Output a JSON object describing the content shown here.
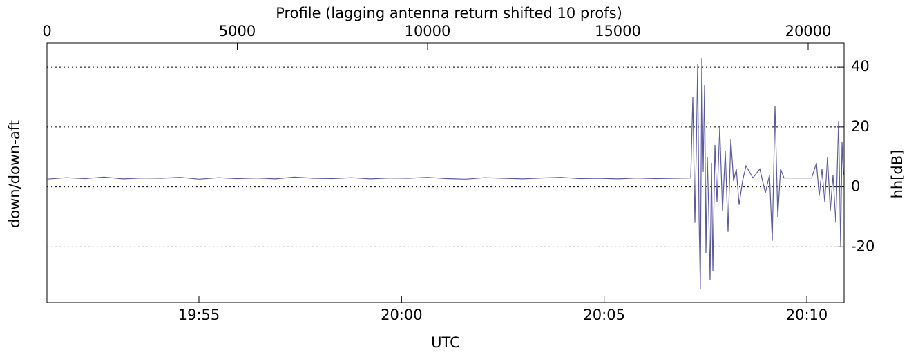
{
  "chart_data": {
    "type": "line",
    "title": "Profile (lagging antenna return shifted 10 profs)",
    "xlabel": "UTC",
    "ylabel": "down/down-aft",
    "y2label": "hh[dB]",
    "xlim": [
      0,
      20944
    ],
    "xticks": [
      0,
      5000,
      10000,
      15000,
      20000
    ],
    "x2lim": [
      51.25,
      70.92
    ],
    "x2ticks": [
      {
        "value": 55,
        "label": "19:55"
      },
      {
        "value": 60,
        "label": "20:00"
      },
      {
        "value": 65,
        "label": "20:05"
      },
      {
        "value": 70,
        "label": "20:10"
      }
    ],
    "ylim": [
      -38.6,
      48.1
    ],
    "yticks": [
      -20,
      0,
      20,
      40
    ],
    "grid": true,
    "x": [
      0,
      500,
      1000,
      1500,
      2000,
      2500,
      3000,
      3500,
      4000,
      4500,
      5000,
      5500,
      6000,
      6500,
      7000,
      7500,
      8000,
      8500,
      9000,
      9500,
      10000,
      10500,
      11000,
      11500,
      12000,
      12500,
      13000,
      13500,
      14000,
      14500,
      15000,
      15500,
      16000,
      16500,
      16915,
      16969,
      17024,
      17060,
      17096,
      17132,
      17168,
      17205,
      17241,
      17277,
      17314,
      17350,
      17387,
      17423,
      17459,
      17495,
      17550,
      17604,
      17677,
      17750,
      17822,
      17895,
      17967,
      18040,
      18113,
      18185,
      18276,
      18367,
      18548,
      18730,
      18875,
      18984,
      19056,
      19129,
      19201,
      19274,
      19365,
      19546,
      19819,
      20091,
      20218,
      20290,
      20363,
      20436,
      20508,
      20581,
      20653,
      20726,
      20799,
      20853,
      20889,
      20926
    ],
    "series": [
      {
        "name": "hh",
        "color": "#5b5b9c",
        "values": [
          2.6,
          3.1,
          2.8,
          3.3,
          2.7,
          3.0,
          2.9,
          3.2,
          2.6,
          3.1,
          2.8,
          3.0,
          2.7,
          3.3,
          2.9,
          2.8,
          3.1,
          2.7,
          3.0,
          2.9,
          3.2,
          2.8,
          2.6,
          3.1,
          2.9,
          2.7,
          3.0,
          3.2,
          2.8,
          2.9,
          2.7,
          3.0,
          2.8,
          2.9,
          3,
          30,
          -12,
          12,
          41,
          -10,
          -34,
          43,
          5,
          34,
          -22,
          10,
          -8,
          -31,
          8,
          -28,
          14,
          -5,
          20,
          -8,
          12,
          -15,
          16,
          2,
          6,
          -6,
          2,
          7,
          3,
          6,
          -2,
          4,
          -18,
          27,
          -10,
          6,
          3,
          3,
          3,
          3,
          8,
          -3,
          6,
          -5,
          10,
          -8,
          4,
          -12,
          22,
          -20,
          15,
          4
        ]
      }
    ]
  }
}
